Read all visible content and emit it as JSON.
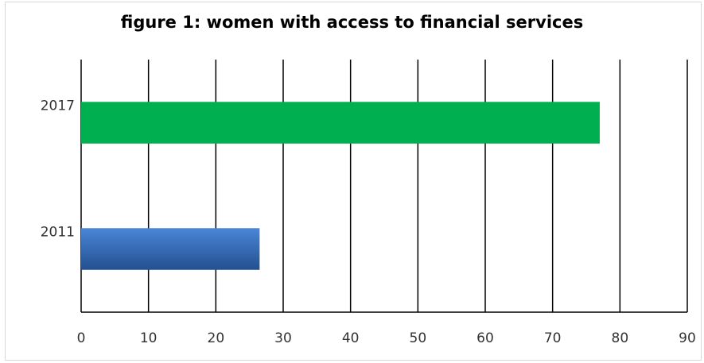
{
  "chart_data": {
    "type": "bar",
    "orientation": "horizontal",
    "title": "figure 1: women with access to financial services",
    "categories": [
      "2011",
      "2017"
    ],
    "values": [
      26.5,
      77
    ],
    "bar_colors": [
      "#2e62b0",
      "#00b050"
    ],
    "xlim": [
      0,
      90
    ],
    "xticks": [
      0,
      10,
      20,
      30,
      40,
      50,
      60,
      70,
      80,
      90
    ],
    "grid": "vertical",
    "legend": "none",
    "xlabel": "",
    "ylabel": ""
  }
}
